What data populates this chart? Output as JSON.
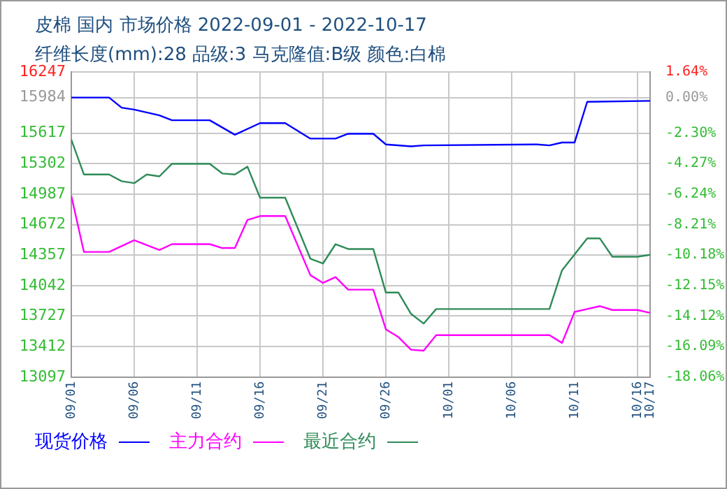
{
  "chart_data": {
    "type": "line",
    "title": "皮棉 国内 市场价格 2022-09-01 - 2022-10-17",
    "subtitle": "纤维长度(mm):28 品级:3 马克隆值:B级 颜色:白棉",
    "xlim": [
      "2022-09-01",
      "2022-10-17"
    ],
    "xticks": [
      {
        "value": "2022-09-01",
        "label": "09/01"
      },
      {
        "value": "2022-09-06",
        "label": "09/06"
      },
      {
        "value": "2022-09-11",
        "label": "09/11"
      },
      {
        "value": "2022-09-16",
        "label": "09/16"
      },
      {
        "value": "2022-09-21",
        "label": "09/21"
      },
      {
        "value": "2022-09-26",
        "label": "09/26"
      },
      {
        "value": "2022-10-01",
        "label": "10/01"
      },
      {
        "value": "2022-10-06",
        "label": "10/06"
      },
      {
        "value": "2022-10-11",
        "label": "10/11"
      },
      {
        "value": "2022-10-16",
        "label": "10/16"
      },
      {
        "value": "2022-10-17",
        "label": "10/17"
      }
    ],
    "ylim": [
      13097,
      16247
    ],
    "yticks": [
      13097,
      13412,
      13727,
      14042,
      14357,
      14672,
      14987,
      15302,
      15617,
      15984,
      16247
    ],
    "y2lim": [
      -18.06,
      1.64
    ],
    "y2ticks": [
      {
        "value": -18.06,
        "label": "-18.06%"
      },
      {
        "value": -16.09,
        "label": "-16.09%"
      },
      {
        "value": -14.12,
        "label": "-14.12%"
      },
      {
        "value": -12.15,
        "label": "-12.15%"
      },
      {
        "value": -10.18,
        "label": "-10.18%"
      },
      {
        "value": -8.21,
        "label": "-8.21%"
      },
      {
        "value": -6.24,
        "label": "-6.24%"
      },
      {
        "value": -4.27,
        "label": "-4.27%"
      },
      {
        "value": -2.3,
        "label": "-2.30%"
      },
      {
        "value": 0,
        "label": "0.00%"
      },
      {
        "value": 1.64,
        "label": "1.64%"
      }
    ],
    "grid": true,
    "legend": "bottom",
    "line_style": "solid",
    "marker": "none",
    "series": [
      {
        "name": "现货价格",
        "color": "#0000ff",
        "x": [
          "2022-09-01",
          "2022-09-04",
          "2022-09-05",
          "2022-09-06",
          "2022-09-08",
          "2022-09-09",
          "2022-09-12",
          "2022-09-14",
          "2022-09-16",
          "2022-09-18",
          "2022-09-20",
          "2022-09-22",
          "2022-09-23",
          "2022-09-25",
          "2022-09-26",
          "2022-09-28",
          "2022-09-29",
          "2022-10-08",
          "2022-10-09",
          "2022-10-10",
          "2022-10-11",
          "2022-10-12",
          "2022-10-17"
        ],
        "values": [
          15984,
          15984,
          15880,
          15860,
          15800,
          15750,
          15750,
          15600,
          15720,
          15720,
          15560,
          15560,
          15610,
          15610,
          15500,
          15480,
          15490,
          15500,
          15490,
          15520,
          15520,
          15940,
          15950
        ]
      },
      {
        "name": "主力合约",
        "color": "#ff00ff",
        "x": [
          "2022-09-01",
          "2022-09-02",
          "2022-09-04",
          "2022-09-06",
          "2022-09-08",
          "2022-09-09",
          "2022-09-12",
          "2022-09-13",
          "2022-09-14",
          "2022-09-15",
          "2022-09-16",
          "2022-09-18",
          "2022-09-20",
          "2022-09-21",
          "2022-09-22",
          "2022-09-23",
          "2022-09-25",
          "2022-09-26",
          "2022-09-27",
          "2022-09-28",
          "2022-09-29",
          "2022-09-30",
          "2022-10-09",
          "2022-10-10",
          "2022-10-11",
          "2022-10-12",
          "2022-10-13",
          "2022-10-14",
          "2022-10-16",
          "2022-10-17"
        ],
        "values": [
          14970,
          14390,
          14390,
          14510,
          14410,
          14470,
          14470,
          14430,
          14430,
          14720,
          14760,
          14760,
          14150,
          14070,
          14130,
          14000,
          14000,
          13590,
          13510,
          13380,
          13370,
          13530,
          13530,
          13450,
          13770,
          13800,
          13830,
          13790,
          13790,
          13760
        ]
      },
      {
        "name": "最近合约",
        "color": "#2e8b57",
        "x": [
          "2022-09-01",
          "2022-09-02",
          "2022-09-04",
          "2022-09-05",
          "2022-09-06",
          "2022-09-07",
          "2022-09-08",
          "2022-09-09",
          "2022-09-12",
          "2022-09-13",
          "2022-09-14",
          "2022-09-15",
          "2022-09-16",
          "2022-09-18",
          "2022-09-20",
          "2022-09-21",
          "2022-09-22",
          "2022-09-23",
          "2022-09-25",
          "2022-09-26",
          "2022-09-27",
          "2022-09-28",
          "2022-09-29",
          "2022-09-30",
          "2022-10-09",
          "2022-10-10",
          "2022-10-12",
          "2022-10-13",
          "2022-10-14",
          "2022-10-16",
          "2022-10-17"
        ],
        "values": [
          15550,
          15190,
          15190,
          15120,
          15100,
          15190,
          15170,
          15300,
          15300,
          15200,
          15190,
          15270,
          14950,
          14950,
          14320,
          14270,
          14470,
          14420,
          14420,
          13970,
          13970,
          13750,
          13650,
          13800,
          13800,
          14200,
          14530,
          14530,
          14340,
          14340,
          14360
        ]
      }
    ]
  }
}
